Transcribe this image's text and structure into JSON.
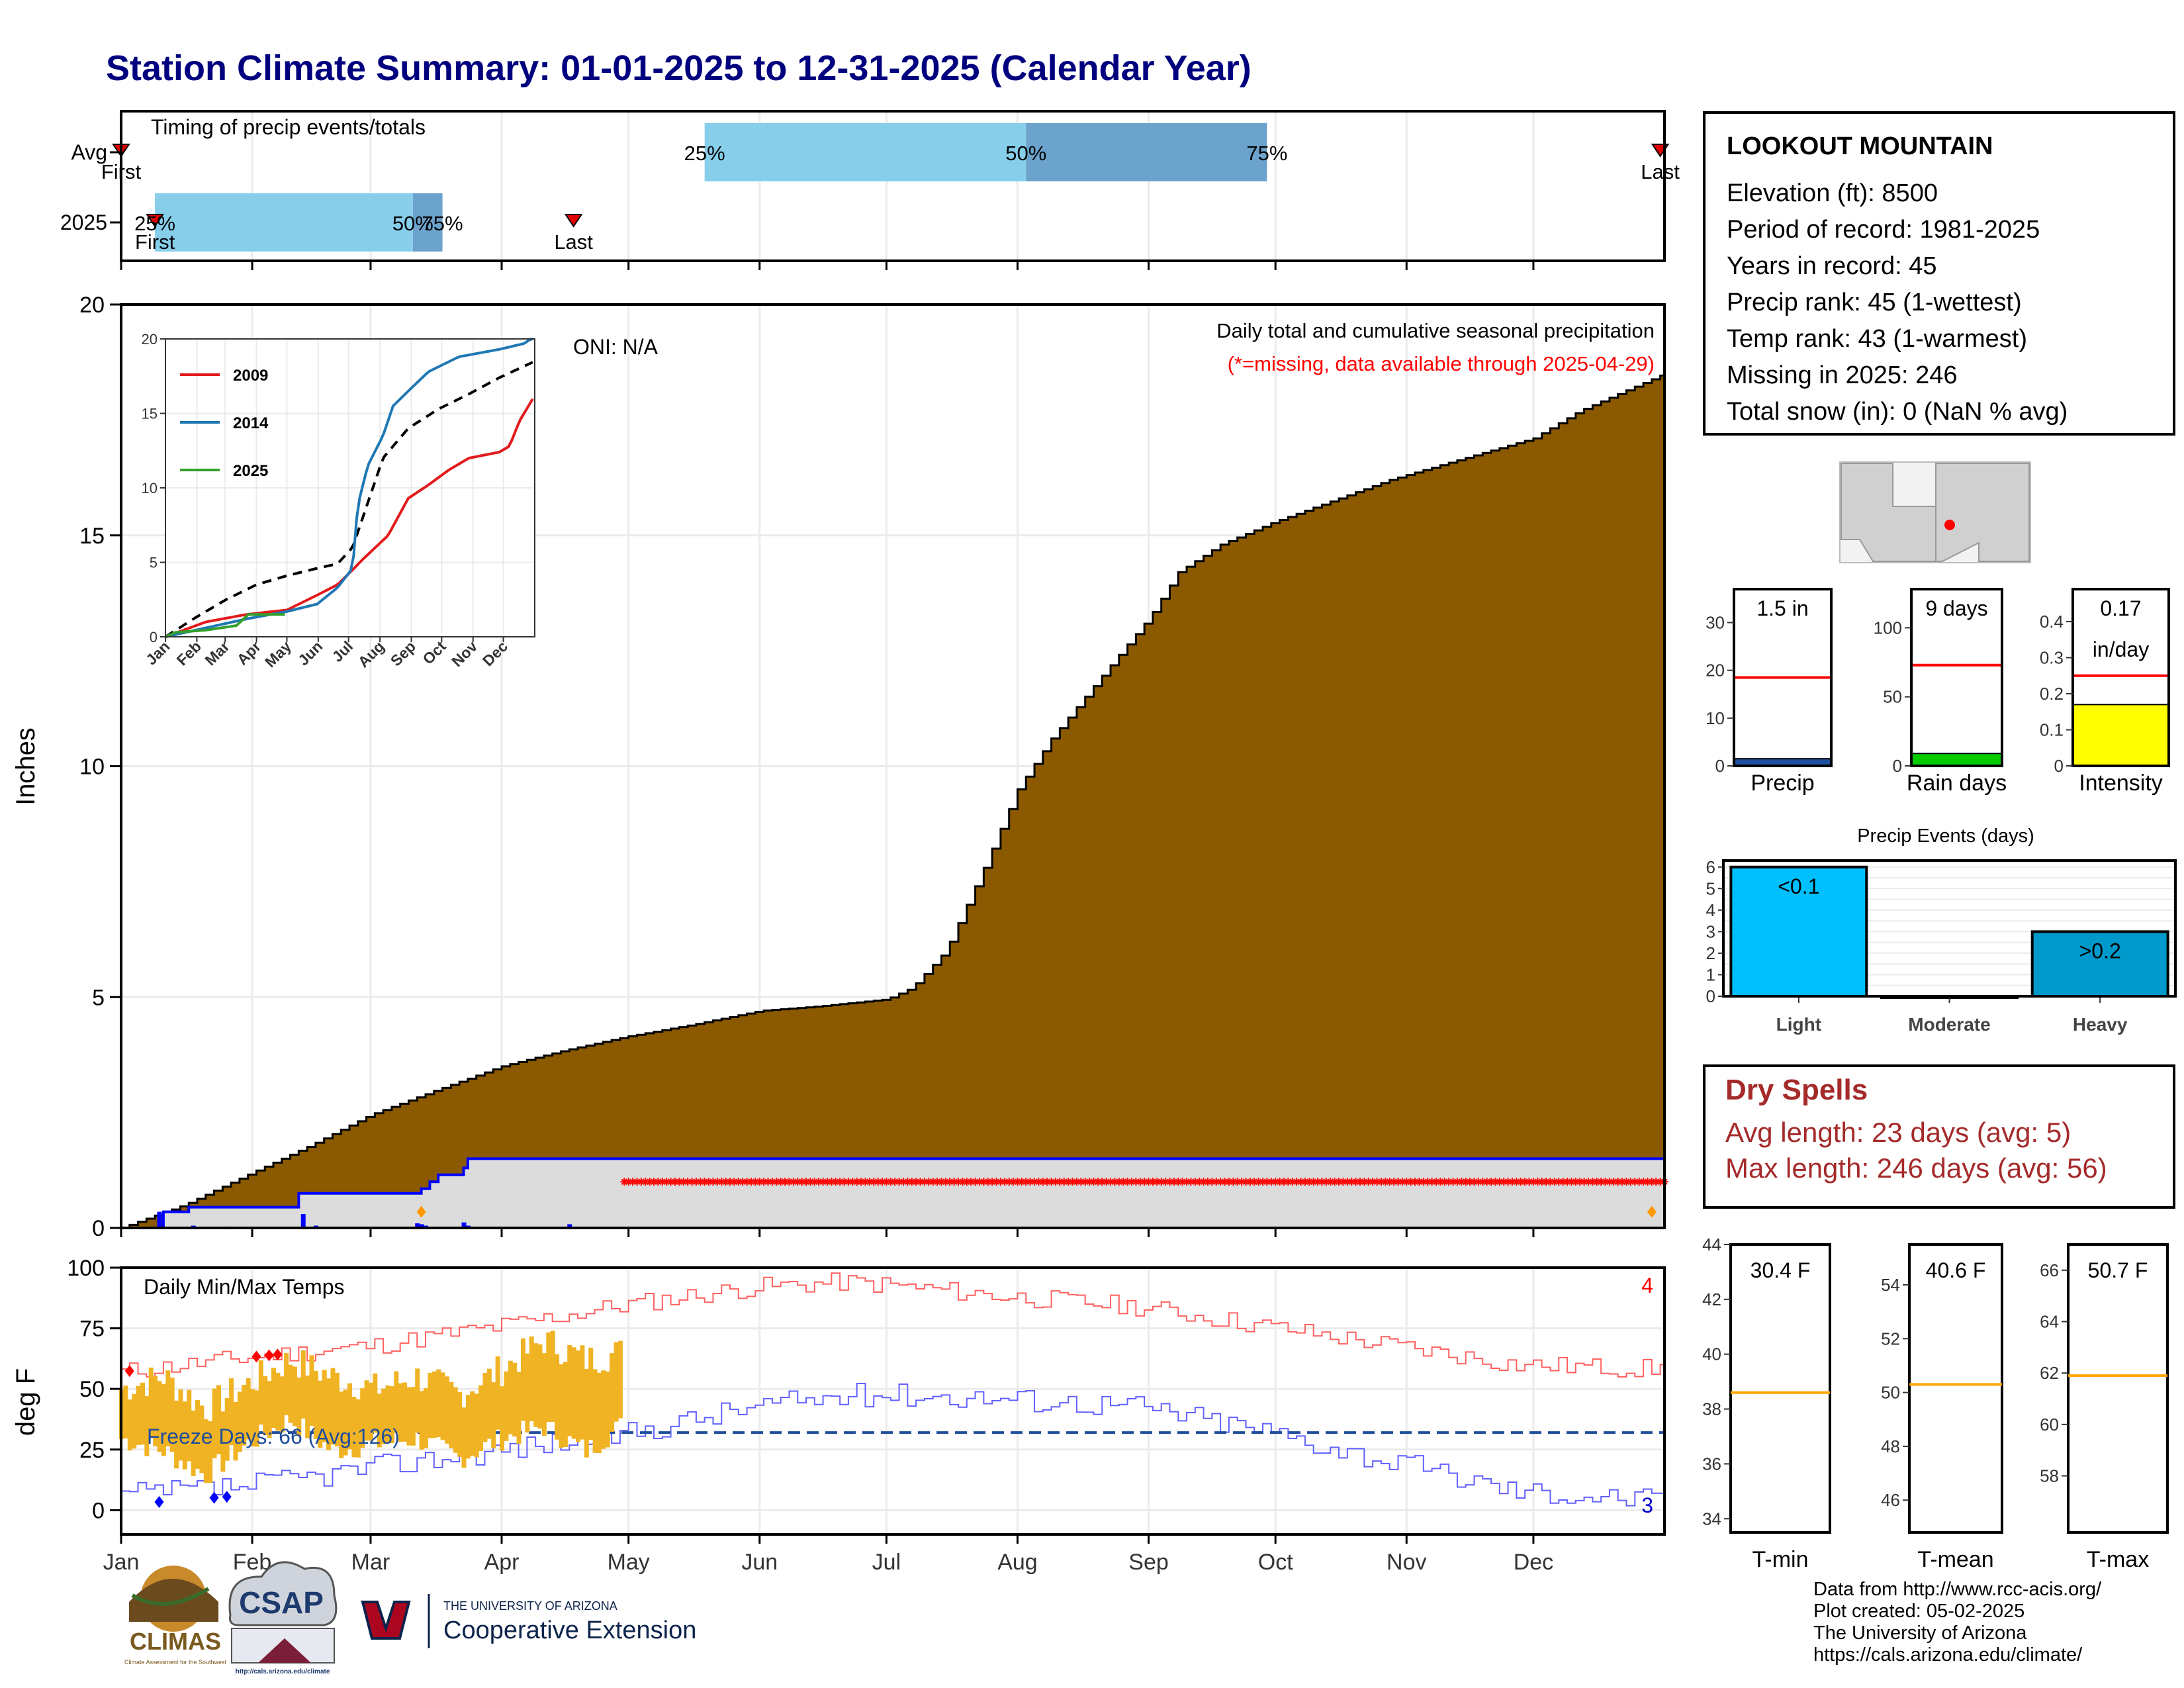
{
  "title": "Station Climate Summary: 01-01-2025 to 12-31-2025 (Calendar Year)",
  "colors": {
    "title": "#00007f",
    "accumulation": "#8b5a00",
    "precip_line": "#0000ff",
    "missing": "#ff0000",
    "timing_light": "#87ceeb",
    "timing_dark": "#6ba3cc",
    "temp_bar": "#f0b323",
    "freeze_line": "#1f4e9c",
    "max_line": "#ff6060",
    "min_line": "#6060ff",
    "avg_ref": "#ff0000",
    "dry_text": "#a52a2a"
  },
  "station": {
    "name": "LOOKOUT MOUNTAIN",
    "lines": [
      "Elevation (ft): 8500",
      "Period of record: 1981-2025",
      "Years in record: 45",
      "Precip rank: 45 (1-wettest)",
      "Temp rank: 43 (1-warmest)",
      "Missing in 2025: 246",
      "Total snow (in): 0 (NaN % avg)"
    ]
  },
  "dry_spells": {
    "title": "Dry Spells",
    "avg": "Avg length: 23 days (avg: 5)",
    "max": "Max length: 246 days (avg: 56)"
  },
  "footer": [
    "Data from http://www.rcc-acis.org/",
    "Plot created: 05-02-2025",
    "The University of Arizona",
    "https://cals.arizona.edu/climate/"
  ],
  "logos": {
    "climas": "CLIMAS",
    "climas_sub": "Climate Assessment for the Southwest",
    "csap": "CSAP",
    "csap_url": "http://cals.arizona.edu/climate",
    "ua_small": "THE UNIVERSITY OF ARIZONA",
    "ua_big": "Cooperative Extension"
  },
  "chart_data": [
    {
      "type": "timing",
      "title": "Timing of precip events/totals",
      "rows": [
        "Avg",
        "2025"
      ],
      "avg": {
        "first": "01-01",
        "q25": "05-19",
        "q50": "08-03",
        "q75": "09-29",
        "last": "12-31",
        "labels": [
          "First",
          "25%",
          "50%",
          "75%",
          "Last"
        ]
      },
      "y2025": {
        "first": "01-09",
        "q25": "01-09",
        "q50": "03-11",
        "q75": "03-18",
        "last": "04-18",
        "labels": [
          "First",
          "25%",
          "50%",
          "75%",
          "Last"
        ]
      }
    },
    {
      "type": "area",
      "title": "Daily total and cumulative seasonal precipitation",
      "subtitle": "(*=missing, data available through 2025-04-29)",
      "annotation": "ONI: N/A",
      "ylabel": "Inches",
      "ylim": [
        0,
        20
      ],
      "yticks": [
        0,
        5,
        10,
        15,
        20
      ],
      "x_months": [
        "Jan",
        "Feb",
        "Mar",
        "Apr",
        "May",
        "Jun",
        "Jul",
        "Aug",
        "Sep",
        "Oct",
        "Nov",
        "Dec"
      ],
      "avg_cumulative": {
        "day": [
          0,
          15,
          31,
          45,
          59,
          75,
          90,
          105,
          120,
          135,
          151,
          165,
          181,
          187,
          195,
          205,
          212,
          220,
          235,
          243,
          250,
          260,
          273,
          285,
          300,
          315,
          334,
          345,
          365
        ],
        "value": [
          0,
          0.5,
          1.2,
          1.8,
          2.45,
          3.0,
          3.5,
          3.85,
          4.15,
          4.4,
          4.7,
          4.8,
          4.95,
          5.2,
          6.0,
          8.0,
          9.5,
          10.6,
          12.3,
          13.2,
          14.2,
          14.8,
          15.3,
          15.7,
          16.2,
          16.6,
          17.1,
          17.7,
          18.5
        ]
      },
      "obs_2025": {
        "day": [
          0,
          9,
          10,
          16,
          41,
          42,
          70,
          71,
          73,
          75,
          81,
          82,
          118,
          119,
          365
        ],
        "value": [
          0,
          0,
          0.35,
          0.45,
          0.45,
          0.75,
          0.75,
          0.85,
          1.0,
          1.15,
          1.3,
          1.5,
          1.5,
          1.5,
          1.5
        ]
      },
      "daily_2025": {
        "day": [
          9,
          14,
          17,
          22,
          25,
          43,
          46,
          70,
          71,
          72,
          80,
          81,
          82,
          106
        ],
        "value": [
          0.35,
          0.02,
          0.05,
          0.02,
          0.03,
          0.3,
          0.05,
          0.1,
          0.08,
          0.05,
          0.02,
          0.12,
          0.05,
          0.08
        ]
      },
      "missing_start_day": 119,
      "missing_end_day": 365,
      "marker_days": [
        71,
        362
      ]
    },
    {
      "type": "line",
      "title": "",
      "series": [
        {
          "name": "2009",
          "color": "#e31a1c"
        },
        {
          "name": "2014",
          "color": "#1f78b4"
        },
        {
          "name": "2025",
          "color": "#33a02c"
        }
      ],
      "x_months": [
        "Jan",
        "Feb",
        "Mar",
        "Apr",
        "May",
        "Jun",
        "Jul",
        "Aug",
        "Sep",
        "Oct",
        "Nov",
        "Dec"
      ],
      "ylim": [
        0,
        20
      ],
      "yticks": [
        0,
        5,
        10,
        15,
        20
      ],
      "avg": {
        "day": [
          0,
          30,
          60,
          90,
          120,
          150,
          170,
          185,
          200,
          215,
          240,
          270,
          300,
          330,
          365
        ],
        "value": [
          0,
          1.3,
          2.5,
          3.5,
          4.1,
          4.6,
          4.9,
          6.0,
          9.0,
          12.0,
          14.0,
          15.3,
          16.3,
          17.4,
          18.5
        ]
      },
      "s2009": {
        "day": [
          0,
          40,
          80,
          120,
          150,
          170,
          185,
          195,
          220,
          240,
          260,
          280,
          300,
          330,
          340,
          350,
          365
        ],
        "value": [
          0,
          1.0,
          1.5,
          1.8,
          2.8,
          3.5,
          4.5,
          5.2,
          6.8,
          9.3,
          10.2,
          11.2,
          12.0,
          12.4,
          12.8,
          14.5,
          16.2
        ]
      },
      "s2014": {
        "day": [
          0,
          40,
          80,
          120,
          150,
          170,
          185,
          190,
          200,
          215,
          225,
          240,
          260,
          290,
          330,
          355,
          365
        ],
        "value": [
          0,
          0.6,
          1.2,
          1.7,
          2.2,
          3.3,
          4.6,
          8.8,
          11.5,
          13.5,
          15.5,
          16.5,
          17.8,
          18.8,
          19.3,
          19.7,
          20.2
        ]
      },
      "s2025": {
        "day": [
          0,
          10,
          40,
          70,
          82,
          118
        ],
        "value": [
          0,
          0.3,
          0.45,
          0.75,
          1.5,
          1.5
        ]
      }
    },
    {
      "type": "bar",
      "title": "Daily Min/Max Temps",
      "ylabel": "deg F",
      "ylim": [
        -10,
        100
      ],
      "yticks": [
        0,
        25,
        50,
        75,
        100
      ],
      "freeze_label": "Freeze Days: 66 (Avg:126)",
      "freeze_line": 32,
      "record_high_count": "4",
      "record_low_count": "3",
      "avg_max": {
        "day": [
          0,
          30,
          60,
          90,
          120,
          150,
          170,
          180,
          210,
          240,
          270,
          300,
          330,
          365
        ],
        "value": [
          57,
          63,
          68,
          76,
          85,
          92,
          94,
          93,
          88,
          84,
          76,
          68,
          60,
          58
        ]
      },
      "avg_min": {
        "day": [
          0,
          30,
          60,
          90,
          120,
          150,
          170,
          180,
          210,
          240,
          270,
          300,
          330,
          365
        ],
        "value": [
          6,
          10,
          18,
          25,
          32,
          43,
          47,
          48,
          46,
          43,
          33,
          20,
          8,
          4
        ]
      },
      "obs_days": {
        "day": [
          0,
          10,
          20,
          30,
          40,
          50,
          60,
          70,
          80,
          90,
          100,
          110,
          118
        ],
        "max": [
          50,
          55,
          42,
          52,
          62,
          55,
          50,
          55,
          48,
          58,
          70,
          62,
          65
        ],
        "min": [
          30,
          25,
          15,
          28,
          38,
          25,
          28,
          30,
          22,
          30,
          35,
          25,
          35
        ]
      },
      "record_highs": [
        2,
        32,
        35,
        37
      ],
      "record_lows": [
        9,
        22,
        25
      ]
    },
    {
      "type": "bar",
      "title": "",
      "panels": [
        {
          "name": "Precip",
          "value": 1.5,
          "avg": 18.5,
          "label": "1.5 in",
          "ylim": [
            0,
            37
          ],
          "yticks": [
            0,
            10,
            20,
            30
          ],
          "color": "#1f4e9c"
        },
        {
          "name": "Rain days",
          "value": 9,
          "avg": 73,
          "label": "9 days",
          "ylim": [
            0,
            128
          ],
          "yticks": [
            0,
            50,
            100
          ],
          "color": "#00cc00"
        },
        {
          "name": "Intensity",
          "value": 0.17,
          "avg": 0.25,
          "label": "0.17",
          "label2": "in/day",
          "ylim": [
            0,
            0.49
          ],
          "yticks": [
            0.0,
            0.1,
            0.2,
            0.3,
            0.4
          ],
          "color": "#ffff00"
        }
      ]
    },
    {
      "type": "bar",
      "title": "Precip Events (days)",
      "categories": [
        "Light",
        "Moderate",
        "Heavy"
      ],
      "values": [
        6,
        0,
        3
      ],
      "labels": [
        "<0.1",
        "",
        ">0.2"
      ],
      "colors": [
        "#00bfff",
        "#00bfff",
        "#0099cc"
      ],
      "ylim": [
        0,
        6.3
      ],
      "yticks": [
        0,
        1,
        2,
        3,
        4,
        5,
        6
      ]
    },
    {
      "type": "bar",
      "title": "",
      "panels": [
        {
          "name": "T-min",
          "label": "30.4 F",
          "avg": 38.6,
          "ylim": [
            33.5,
            44
          ],
          "yticks": [
            34,
            36,
            38,
            40,
            42,
            44
          ]
        },
        {
          "name": "T-mean",
          "label": "40.6 F",
          "avg": 50.3,
          "ylim": [
            44.8,
            55.5
          ],
          "yticks": [
            46,
            48,
            50,
            52,
            54
          ]
        },
        {
          "name": "T-max",
          "label": "50.7 F",
          "avg": 61.9,
          "ylim": [
            55.8,
            67
          ],
          "yticks": [
            58,
            60,
            62,
            64,
            66
          ]
        }
      ]
    }
  ]
}
